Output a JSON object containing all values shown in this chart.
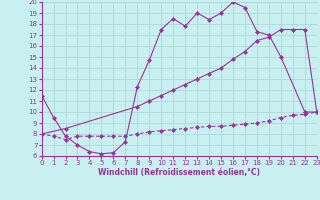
{
  "bg_color": "#c8f0f0",
  "line_color": "#993399",
  "grid_color": "#b0d8d8",
  "ylim": [
    6,
    20
  ],
  "xlim": [
    0,
    23
  ],
  "yticks": [
    6,
    7,
    8,
    9,
    10,
    11,
    12,
    13,
    14,
    15,
    16,
    17,
    18,
    19,
    20
  ],
  "xticks": [
    0,
    1,
    2,
    3,
    4,
    5,
    6,
    7,
    8,
    9,
    10,
    11,
    12,
    13,
    14,
    15,
    16,
    17,
    18,
    19,
    20,
    21,
    22,
    23
  ],
  "xlabel": "Windchill (Refroidissement éolien,°C)",
  "curve1_x": [
    0,
    1,
    2,
    3,
    4,
    5,
    6,
    7,
    8,
    9,
    10,
    11,
    12,
    13,
    14,
    15,
    16,
    17,
    18,
    19,
    20,
    22,
    23
  ],
  "curve1_y": [
    11.5,
    9.5,
    7.8,
    7.0,
    6.4,
    6.2,
    6.3,
    7.3,
    12.3,
    14.7,
    17.5,
    18.5,
    17.8,
    19.0,
    18.4,
    19.0,
    20.0,
    19.5,
    17.3,
    17.0,
    15.0,
    10.0,
    10.0
  ],
  "curve2_x": [
    0,
    2,
    8,
    9,
    10,
    11,
    12,
    13,
    14,
    15,
    16,
    17,
    18,
    19,
    20,
    21,
    22,
    23
  ],
  "curve2_y": [
    8.0,
    8.5,
    10.5,
    11.0,
    11.5,
    12.0,
    12.5,
    13.0,
    13.5,
    14.0,
    14.8,
    15.5,
    16.5,
    16.8,
    17.5,
    17.5,
    17.5,
    10.0
  ],
  "curve3_x": [
    0,
    1,
    2,
    3,
    4,
    5,
    6,
    7,
    8,
    9,
    10,
    11,
    12,
    13,
    14,
    15,
    16,
    17,
    18,
    19,
    20,
    21,
    22,
    23
  ],
  "curve3_y": [
    8.0,
    7.8,
    7.5,
    7.8,
    7.8,
    7.8,
    7.8,
    7.8,
    8.0,
    8.2,
    8.3,
    8.4,
    8.5,
    8.6,
    8.7,
    8.7,
    8.8,
    8.9,
    9.0,
    9.2,
    9.5,
    9.7,
    9.8,
    10.0
  ],
  "ylabel_ticks_fontsize": 5.5,
  "xlabel_fontsize": 5.5
}
